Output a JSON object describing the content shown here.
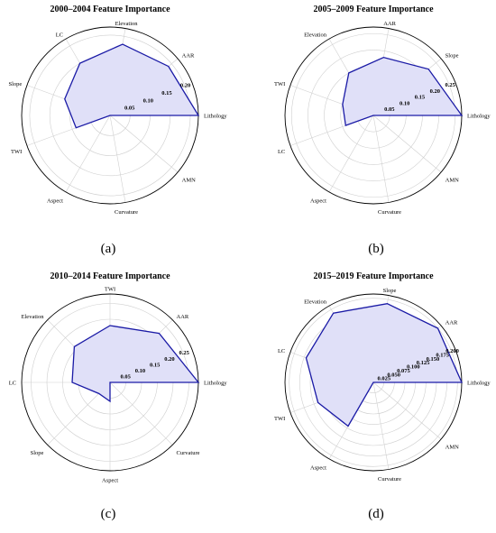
{
  "panels": [
    "(a)",
    "(b)",
    "(c)",
    "(d)"
  ],
  "colors": {
    "line": "#1a1aa6",
    "fill": "#e0e0f8",
    "grid": "#cfcfcf",
    "spoke": "#d0d0d0",
    "outer": "#000000"
  },
  "chart_data": [
    {
      "type": "radar",
      "title": "2000–2004 Feature Importance",
      "categories": [
        "Lithology",
        "AAR",
        "Elevation",
        "LC",
        "Slope",
        "TWI",
        "Aspect",
        "Curvature",
        "AMN"
      ],
      "values": [
        0.22,
        0.19,
        0.18,
        0.15,
        0.12,
        0.09,
        0.0,
        0.0,
        0.0
      ],
      "rticks": [
        0.05,
        0.1,
        0.15,
        0.2
      ],
      "rtick_labels": [
        "0.05",
        "0.10",
        "0.15",
        "0.20"
      ],
      "rmax": 0.22
    },
    {
      "type": "radar",
      "title": "2005–2009 Feature Importance",
      "categories": [
        "Lithology",
        "Slope",
        "AAR",
        "Elevation",
        "TWI",
        "LC",
        "Aspect",
        "Curvature",
        "AMN"
      ],
      "values": [
        0.27,
        0.22,
        0.18,
        0.15,
        0.1,
        0.09,
        0.0,
        0.0,
        0.0
      ],
      "rticks": [
        0.05,
        0.1,
        0.15,
        0.2,
        0.25
      ],
      "rtick_labels": [
        "0.05",
        "0.10",
        "0.15",
        "0.20",
        "0.25"
      ],
      "rmax": 0.27
    },
    {
      "type": "radar",
      "title": "2010–2014 Feature Importance",
      "categories": [
        "Lithology",
        "AAR",
        "TWI",
        "Elevation",
        "LC",
        "Slope",
        "Aspect",
        "Curvature"
      ],
      "values": [
        0.28,
        0.22,
        0.18,
        0.16,
        0.12,
        0.05,
        0.06,
        0.0
      ],
      "rticks": [
        0.05,
        0.1,
        0.15,
        0.2,
        0.25
      ],
      "rtick_labels": [
        "0.05",
        "0.10",
        "0.15",
        "0.20",
        "0.25"
      ],
      "rmax": 0.28
    },
    {
      "type": "radar",
      "title": "2015–2019 Feature Importance",
      "categories": [
        "Lithology",
        "AAR",
        "Slope",
        "Elevation",
        "LC",
        "TWI",
        "Aspect",
        "Curvature",
        "AMN"
      ],
      "values": [
        0.21,
        0.2,
        0.19,
        0.19,
        0.17,
        0.14,
        0.12,
        0.0,
        0.0
      ],
      "rticks": [
        0.025,
        0.05,
        0.075,
        0.1,
        0.125,
        0.15,
        0.175,
        0.2
      ],
      "rtick_labels": [
        "0.025",
        "0.050",
        "0.075",
        "0.100",
        "0.125",
        "0.150",
        "0.175",
        "0.200"
      ],
      "rmax": 0.21
    }
  ]
}
